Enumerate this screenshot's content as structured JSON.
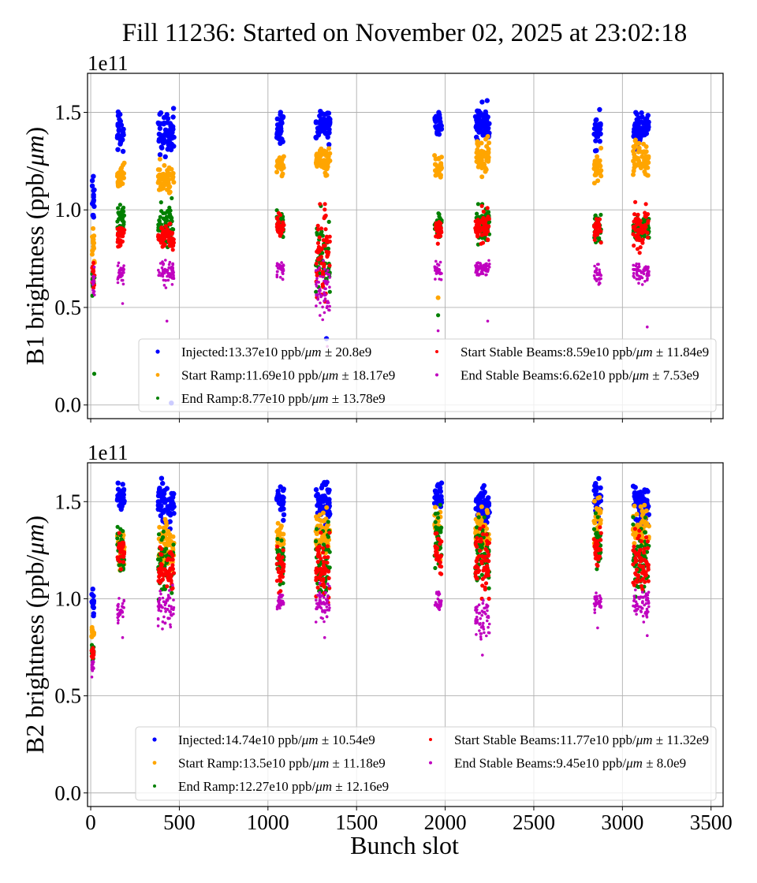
{
  "chart_data": {
    "type": "scatter",
    "title": "Fill 11236: Started on November 02, 2025 at 23:02:18",
    "xlabel": "Bunch slot",
    "xlim": [
      -18,
      3568
    ],
    "xticks": [
      0,
      500,
      1000,
      1500,
      2000,
      2500,
      3000,
      3500
    ],
    "xtick_labels": [
      "0",
      "500",
      "1000",
      "1500",
      "2000",
      "2500",
      "3000",
      "3500"
    ],
    "grid": true,
    "series_names": [
      "Injected",
      "Start Ramp",
      "End Ramp",
      "Start Stable Beams",
      "End Stable Beams"
    ],
    "series_colors": [
      "#0000ff",
      "#ffa500",
      "#008000",
      "#ff0000",
      "#bf00bf"
    ],
    "panels": [
      {
        "name": "B1",
        "ylabel": "B1 brightness (ppb/μm)",
        "ylabel_parts": [
          "B1 brightness (ppb/",
          "μm",
          ")"
        ],
        "y_offset_label": "1e11",
        "ylim": [
          -0.07,
          1.7
        ],
        "yticks": [
          0.0,
          0.5,
          1.0,
          1.5
        ],
        "ytick_labels": [
          "0.0",
          "0.5",
          "1.0",
          "1.5"
        ],
        "legend_location": "lower-right",
        "legend": [
          {
            "series": "Injected",
            "label_pre": "Injected:13.37e10 ppb/",
            "label_post": " ± 20.8e9"
          },
          {
            "series": "Start Ramp",
            "label_pre": "Start Ramp:11.69e10 ppb/",
            "label_post": " ± 18.17e9"
          },
          {
            "series": "End Ramp",
            "label_pre": "End Ramp:8.77e10 ppb/",
            "label_post": " ± 13.78e9"
          },
          {
            "series": "Start Stable Beams",
            "label_pre": "Start Stable Beams:8.59e10 ppb/",
            "label_post": " ± 11.84e9"
          },
          {
            "series": "End Stable Beams",
            "label_pre": "End Stable Beams:6.62e10 ppb/",
            "label_post": " ± 7.53e9"
          }
        ],
        "summary": {
          "Injected": {
            "mean_e10": 13.37,
            "std_e9": 20.8
          },
          "Start Ramp": {
            "mean_e10": 11.69,
            "std_e9": 18.17
          },
          "End Ramp": {
            "mean_e10": 8.77,
            "std_e9": 13.78
          },
          "Start Stable Beams": {
            "mean_e10": 8.59,
            "std_e9": 11.84
          },
          "End Stable Beams": {
            "mean_e10": 6.62,
            "std_e9": 7.53
          }
        },
        "clusters": [
          {
            "x_range": [
              8,
              22
            ],
            "n": 14,
            "ranges_e11": {
              "Injected": [
                0.9,
                1.18
              ],
              "Start Ramp": [
                0.7,
                0.98
              ],
              "End Ramp": [
                0.58,
                0.72
              ],
              "Start Stable Beams": [
                0.58,
                0.74
              ],
              "End Stable Beams": [
                0.56,
                0.7
              ]
            }
          },
          {
            "x_range": [
              150,
              190
            ],
            "n": 30,
            "ranges_e11": {
              "Injected": [
                1.32,
                1.49
              ],
              "Start Ramp": [
                1.1,
                1.23
              ],
              "End Ramp": [
                0.86,
                1.04
              ],
              "Start Stable Beams": [
                0.8,
                0.94
              ],
              "End Stable Beams": [
                0.62,
                0.73
              ]
            }
          },
          {
            "x_range": [
              380,
              470
            ],
            "n": 60,
            "ranges_e11": {
              "Injected": [
                1.28,
                1.5
              ],
              "Start Ramp": [
                1.09,
                1.24
              ],
              "End Ramp": [
                0.82,
                1.04
              ],
              "Start Stable Beams": [
                0.78,
                0.93
              ],
              "End Stable Beams": [
                0.62,
                0.74
              ]
            }
          },
          {
            "x_range": [
              1050,
              1090
            ],
            "n": 30,
            "ranges_e11": {
              "Injected": [
                1.33,
                1.48
              ],
              "Start Ramp": [
                1.17,
                1.29
              ],
              "End Ramp": [
                0.85,
                1.01
              ],
              "Start Stable Beams": [
                0.85,
                0.97
              ],
              "End Stable Beams": [
                0.65,
                0.74
              ]
            }
          },
          {
            "x_range": [
              1270,
              1350
            ],
            "n": 60,
            "ranges_e11": {
              "Injected": [
                1.35,
                1.51
              ],
              "Start Ramp": [
                1.19,
                1.31
              ],
              "End Ramp": [
                0.6,
                1.0
              ],
              "Start Stable Beams": [
                0.55,
                1.01
              ],
              "End Stable Beams": [
                0.45,
                0.72
              ]
            }
          },
          {
            "x_range": [
              1940,
              1980
            ],
            "n": 30,
            "ranges_e11": {
              "Injected": [
                1.36,
                1.5
              ],
              "Start Ramp": [
                1.16,
                1.29
              ],
              "End Ramp": [
                0.85,
                0.97
              ],
              "Start Stable Beams": [
                0.84,
                0.96
              ],
              "End Stable Beams": [
                0.64,
                0.73
              ]
            }
          },
          {
            "x_range": [
              2170,
              2250
            ],
            "n": 60,
            "ranges_e11": {
              "Injected": [
                1.34,
                1.54
              ],
              "Start Ramp": [
                1.19,
                1.36
              ],
              "End Ramp": [
                0.83,
                1.01
              ],
              "Start Stable Beams": [
                0.83,
                1.0
              ],
              "End Stable Beams": [
                0.65,
                0.74
              ]
            }
          },
          {
            "x_range": [
              2840,
              2880
            ],
            "n": 30,
            "ranges_e11": {
              "Injected": [
                1.3,
                1.5
              ],
              "Start Ramp": [
                1.13,
                1.32
              ],
              "End Ramp": [
                0.81,
                1.0
              ],
              "Start Stable Beams": [
                0.83,
                0.96
              ],
              "End Stable Beams": [
                0.61,
                0.72
              ]
            }
          },
          {
            "x_range": [
              3060,
              3150
            ],
            "n": 60,
            "ranges_e11": {
              "Injected": [
                1.33,
                1.48
              ],
              "Start Ramp": [
                1.18,
                1.35
              ],
              "End Ramp": [
                0.82,
                1.0
              ],
              "Start Stable Beams": [
                0.8,
                1.02
              ],
              "End Stable Beams": [
                0.62,
                0.74
              ]
            }
          }
        ],
        "outliers_e11": [
          {
            "series": "End Ramp",
            "x": 20,
            "y": 0.16
          },
          {
            "series": "Injected",
            "x": 455,
            "y": 0.01
          },
          {
            "series": "Injected",
            "x": 1330,
            "y": 0.34
          },
          {
            "series": "End Stable Beams",
            "x": 1335,
            "y": 0.3
          },
          {
            "series": "Start Ramp",
            "x": 1960,
            "y": 0.55
          },
          {
            "series": "End Ramp",
            "x": 1960,
            "y": 0.46
          },
          {
            "series": "End Stable Beams",
            "x": 1960,
            "y": 0.38
          },
          {
            "series": "End Stable Beams",
            "x": 180,
            "y": 0.52
          },
          {
            "series": "End Stable Beams",
            "x": 430,
            "y": 0.43
          },
          {
            "series": "End Stable Beams",
            "x": 2240,
            "y": 0.43
          },
          {
            "series": "End Stable Beams",
            "x": 3140,
            "y": 0.4
          }
        ]
      },
      {
        "name": "B2",
        "ylabel": "B2 brightness (ppb/μm)",
        "ylabel_parts": [
          "B2 brightness (ppb/",
          "μm",
          ")"
        ],
        "y_offset_label": "1e11",
        "ylim": [
          -0.07,
          1.7
        ],
        "yticks": [
          0.0,
          0.5,
          1.0,
          1.5
        ],
        "ytick_labels": [
          "0.0",
          "0.5",
          "1.0",
          "1.5"
        ],
        "legend_location": "lower-right",
        "legend": [
          {
            "series": "Injected",
            "label_pre": "Injected:14.74e10 ppb/",
            "label_post": " ± 10.54e9"
          },
          {
            "series": "Start Ramp",
            "label_pre": "Start Ramp:13.5e10 ppb/",
            "label_post": " ± 11.18e9"
          },
          {
            "series": "End Ramp",
            "label_pre": "End Ramp:12.27e10 ppb/",
            "label_post": " ± 12.16e9"
          },
          {
            "series": "Start Stable Beams",
            "label_pre": "Start Stable Beams:11.77e10 ppb/",
            "label_post": " ± 11.32e9"
          },
          {
            "series": "End Stable Beams",
            "label_pre": "End Stable Beams:9.45e10 ppb/",
            "label_post": " ± 8.0e9"
          }
        ],
        "summary": {
          "Injected": {
            "mean_e10": 14.74,
            "std_e9": 10.54
          },
          "Start Ramp": {
            "mean_e10": 13.5,
            "std_e9": 11.18
          },
          "End Ramp": {
            "mean_e10": 12.27,
            "std_e9": 12.16
          },
          "Start Stable Beams": {
            "mean_e10": 11.77,
            "std_e9": 11.32
          },
          "End Stable Beams": {
            "mean_e10": 9.45,
            "std_e9": 8.0
          }
        },
        "clusters": [
          {
            "x_range": [
              5,
              18
            ],
            "n": 14,
            "ranges_e11": {
              "Injected": [
                0.92,
                1.04
              ],
              "Start Ramp": [
                0.77,
                0.9
              ],
              "End Ramp": [
                0.66,
                0.78
              ],
              "Start Stable Beams": [
                0.68,
                0.76
              ],
              "End Stable Beams": [
                0.6,
                0.7
              ]
            }
          },
          {
            "x_range": [
              150,
              190
            ],
            "n": 30,
            "ranges_e11": {
              "Injected": [
                1.44,
                1.6
              ],
              "Start Ramp": [
                1.12,
                1.37
              ],
              "End Ramp": [
                1.12,
                1.35
              ],
              "Start Stable Beams": [
                1.13,
                1.32
              ],
              "End Stable Beams": [
                0.86,
                1.02
              ]
            }
          },
          {
            "x_range": [
              380,
              470
            ],
            "n": 60,
            "ranges_e11": {
              "Injected": [
                1.38,
                1.6
              ],
              "Start Ramp": [
                1.14,
                1.41
              ],
              "End Ramp": [
                1.0,
                1.33
              ],
              "Start Stable Beams": [
                1.03,
                1.27
              ],
              "End Stable Beams": [
                0.84,
                1.05
              ]
            }
          },
          {
            "x_range": [
              1050,
              1090
            ],
            "n": 30,
            "ranges_e11": {
              "Injected": [
                1.42,
                1.58
              ],
              "Start Ramp": [
                1.22,
                1.4
              ],
              "End Ramp": [
                1.08,
                1.35
              ],
              "Start Stable Beams": [
                1.05,
                1.27
              ],
              "End Stable Beams": [
                0.94,
                1.03
              ]
            }
          },
          {
            "x_range": [
              1270,
              1350
            ],
            "n": 60,
            "ranges_e11": {
              "Injected": [
                1.35,
                1.61
              ],
              "Start Ramp": [
                1.2,
                1.45
              ],
              "End Ramp": [
                1.0,
                1.4
              ],
              "Start Stable Beams": [
                1.0,
                1.32
              ],
              "End Stable Beams": [
                0.9,
                1.06
              ]
            }
          },
          {
            "x_range": [
              1940,
              1980
            ],
            "n": 30,
            "ranges_e11": {
              "Injected": [
                1.46,
                1.6
              ],
              "Start Ramp": [
                1.22,
                1.48
              ],
              "End Ramp": [
                1.16,
                1.47
              ],
              "Start Stable Beams": [
                1.12,
                1.33
              ],
              "End Stable Beams": [
                0.94,
                1.04
              ]
            }
          },
          {
            "x_range": [
              2170,
              2250
            ],
            "n": 60,
            "ranges_e11": {
              "Injected": [
                1.36,
                1.59
              ],
              "Start Ramp": [
                1.18,
                1.47
              ],
              "End Ramp": [
                1.05,
                1.4
              ],
              "Start Stable Beams": [
                1.02,
                1.37
              ],
              "End Stable Beams": [
                0.78,
                1.01
              ]
            }
          },
          {
            "x_range": [
              2840,
              2880
            ],
            "n": 30,
            "ranges_e11": {
              "Injected": [
                1.42,
                1.62
              ],
              "Start Ramp": [
                1.27,
                1.52
              ],
              "End Ramp": [
                1.12,
                1.42
              ],
              "Start Stable Beams": [
                1.12,
                1.37
              ],
              "End Stable Beams": [
                0.93,
                1.03
              ]
            }
          },
          {
            "x_range": [
              3060,
              3150
            ],
            "n": 60,
            "ranges_e11": {
              "Injected": [
                1.37,
                1.6
              ],
              "Start Ramp": [
                1.22,
                1.5
              ],
              "End Ramp": [
                1.02,
                1.4
              ],
              "Start Stable Beams": [
                1.04,
                1.34
              ],
              "End Stable Beams": [
                0.9,
                1.05
              ]
            }
          }
        ],
        "outliers_e11": [
          {
            "series": "End Stable Beams",
            "x": 180,
            "y": 0.8
          },
          {
            "series": "End Stable Beams",
            "x": 1320,
            "y": 0.8
          },
          {
            "series": "End Stable Beams",
            "x": 2210,
            "y": 0.71
          },
          {
            "series": "End Stable Beams",
            "x": 2860,
            "y": 0.85
          },
          {
            "series": "End Stable Beams",
            "x": 3140,
            "y": 0.81
          }
        ]
      }
    ]
  }
}
